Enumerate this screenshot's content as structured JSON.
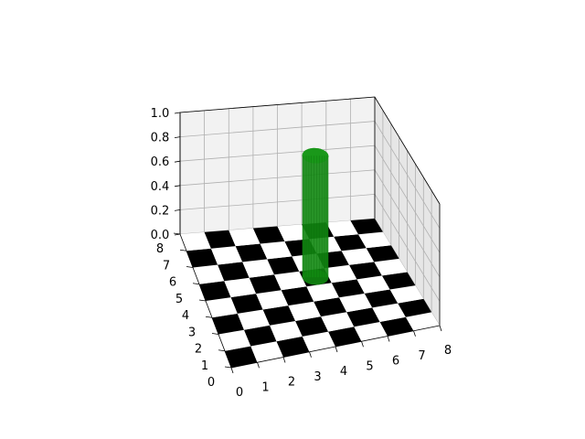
{
  "chart_data": {
    "type": "3d-bar",
    "title": "",
    "xlabel": "",
    "ylabel": "",
    "zlabel": "",
    "x_ticks": [
      "0",
      "1",
      "2",
      "3",
      "4",
      "5",
      "6",
      "7",
      "8"
    ],
    "y_ticks": [
      "0",
      "1",
      "2",
      "3",
      "4",
      "5",
      "6",
      "7",
      "8"
    ],
    "z_ticks": [
      "0.0",
      "0.2",
      "0.4",
      "0.6",
      "0.8",
      "1.0"
    ],
    "xlim": [
      0,
      8
    ],
    "ylim": [
      0,
      8
    ],
    "zlim": [
      0,
      1
    ],
    "grid": true,
    "board": {
      "rows": 8,
      "cols": 8,
      "colors": [
        "#000000",
        "#ffffff"
      ]
    },
    "cylinder": {
      "center_x": 4.5,
      "center_y": 4.5,
      "radius": 0.5,
      "z_min": 0,
      "z_max": 1,
      "color": "#118811"
    },
    "colors": {
      "grid": "#b0b0b0",
      "pane": "#f2f2f2"
    }
  }
}
